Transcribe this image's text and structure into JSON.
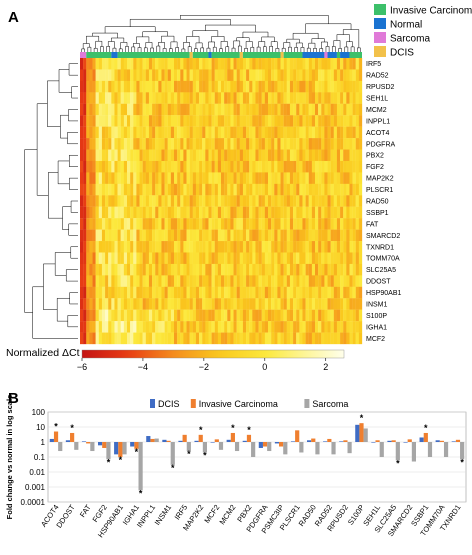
{
  "panel_a": {
    "label": "A",
    "legend": [
      {
        "name": "Invasive Carcinoma",
        "color": "#3cc06a"
      },
      {
        "name": "Normal",
        "color": "#1a73d1"
      },
      {
        "name": "Sarcoma",
        "color": "#e07ad8"
      },
      {
        "name": "DCIS",
        "color": "#f2c14a"
      }
    ],
    "genes": [
      "IRF5",
      "RAD52",
      "RPUSD2",
      "SEH1L",
      "MCM2",
      "INPPL1",
      "ACOT4",
      "PDGFRA",
      "PBX2",
      "FGF2",
      "MAP2K2",
      "PLSCR1",
      "RAD50",
      "SSBP1",
      "FAT",
      "SMARCD2",
      "TXNRD1",
      "TOMM70A",
      "SLC25A5",
      "DDOST",
      "HSP90AB1",
      "INSM1",
      "S100P",
      "IGHA1",
      "MCF2"
    ],
    "colorbar_label": "Normalized ΔCt",
    "colorbar_ticks": [
      "−6",
      "−4",
      "−2",
      "0",
      "2"
    ]
  },
  "panel_b": {
    "label": "B",
    "title_series": [
      "DCIS",
      "Invasive Carcinoma",
      "Sarcoma"
    ]
  },
  "chart_data": [
    {
      "type": "heatmap",
      "colorbar": {
        "label": "Normalized ΔCt",
        "range": [
          -6,
          2.6
        ],
        "ticks": [
          -6,
          -4,
          -2,
          0,
          2
        ]
      },
      "rows": [
        "IRF5",
        "RAD52",
        "RPUSD2",
        "SEH1L",
        "MCM2",
        "INPPL1",
        "ACOT4",
        "PDGFRA",
        "PBX2",
        "FGF2",
        "MAP2K2",
        "PLSCR1",
        "RAD50",
        "SSBP1",
        "FAT",
        "SMARCD2",
        "TXNRD1",
        "TOMM70A",
        "SLC25A5",
        "DDOST",
        "HSP90AB1",
        "INSM1",
        "S100P",
        "IGHA1",
        "MCF2"
      ],
      "n_columns": 90,
      "column_groups": [
        {
          "group": "Sarcoma",
          "from": 0,
          "to": 1
        },
        {
          "group": "Invasive Carcinoma",
          "from": 2,
          "to": 9
        },
        {
          "group": "Normal",
          "from": 10,
          "to": 11
        },
        {
          "group": "Invasive Carcinoma",
          "from": 12,
          "to": 34
        },
        {
          "group": "DCIS",
          "from": 35,
          "to": 35
        },
        {
          "group": "Invasive Carcinoma",
          "from": 36,
          "to": 40
        },
        {
          "group": "Normal",
          "from": 41,
          "to": 41
        },
        {
          "group": "Invasive Carcinoma",
          "from": 42,
          "to": 50
        },
        {
          "group": "DCIS",
          "from": 51,
          "to": 51
        },
        {
          "group": "Invasive Carcinoma",
          "from": 52,
          "to": 63
        },
        {
          "group": "DCIS",
          "from": 64,
          "to": 64
        },
        {
          "group": "Invasive Carcinoma",
          "from": 65,
          "to": 70
        },
        {
          "group": "Normal",
          "from": 71,
          "to": 77
        },
        {
          "group": "Sarcoma",
          "from": 78,
          "to": 78
        },
        {
          "group": "Normal",
          "from": 79,
          "to": 81
        },
        {
          "group": "Invasive Carcinoma",
          "from": 82,
          "to": 82
        },
        {
          "group": "Normal",
          "from": 83,
          "to": 85
        },
        {
          "group": "Invasive Carcinoma",
          "from": 86,
          "to": 89
        }
      ]
    },
    {
      "type": "bar",
      "ylabel": "Fold change vs normal in log scale",
      "yscale": "log",
      "ylim": [
        0.0001,
        100
      ],
      "yticks": [
        "0.0001",
        "0.001",
        "0.01",
        "0.1",
        "1",
        "10",
        "100"
      ],
      "categories": [
        "ACOT4",
        "DDOST",
        "FAT",
        "FGF2",
        "HSP90AB1",
        "IGHA1",
        "INPPL1",
        "INSM1",
        "IRF5",
        "MAP2K2",
        "MCF2",
        "MCM2",
        "PBX2",
        "PDGFRA",
        "PSMC3IP",
        "PLSCR1",
        "RAD50",
        "RAD52",
        "RPUSD2",
        "S100P",
        "SEH1L",
        "SLC25A5",
        "SMARCD2",
        "SSBP1",
        "TOMM70A",
        "TXNRD1"
      ],
      "series": [
        {
          "name": "DCIS",
          "color": "#3f6cc4",
          "values": [
            1.6,
            1.3,
            1.1,
            0.6,
            0.15,
            0.5,
            2.5,
            1.4,
            1.2,
            1.2,
            1.0,
            1.4,
            1.2,
            0.4,
            0.8,
            1.1,
            1.3,
            1.1,
            1.1,
            14,
            1.0,
            1.2,
            1.0,
            2.0,
            1.3,
            1.1
          ]
        },
        {
          "name": "Invasive Carcinoma",
          "color": "#ef7f2f",
          "values": [
            5.0,
            4.0,
            0.8,
            0.4,
            0.1,
            0.35,
            1.6,
            1.2,
            3.0,
            3.0,
            1.5,
            4.0,
            3.0,
            0.5,
            0.5,
            6.0,
            1.7,
            1.6,
            1.3,
            18,
            1.3,
            1.3,
            1.5,
            4.0,
            1.2,
            1.4
          ]
        },
        {
          "name": "Sarcoma",
          "color": "#a6a6a6",
          "values": [
            0.25,
            0.3,
            0.25,
            0.07,
            0.15,
            0.0006,
            1.7,
            0.03,
            0.25,
            0.2,
            0.3,
            0.25,
            0.1,
            0.25,
            0.15,
            0.2,
            0.15,
            0.15,
            0.18,
            8.0,
            0.1,
            0.06,
            0.05,
            0.1,
            0.1,
            0.07
          ]
        }
      ],
      "significant_markers": [
        {
          "category": "ACOT4",
          "series": "Invasive Carcinoma"
        },
        {
          "category": "DDOST",
          "series": "Invasive Carcinoma"
        },
        {
          "category": "FGF2",
          "series": "Sarcoma"
        },
        {
          "category": "HSP90AB1",
          "series": "Invasive Carcinoma"
        },
        {
          "category": "IGHA1",
          "series": "Invasive Carcinoma"
        },
        {
          "category": "IGHA1",
          "series": "Sarcoma"
        },
        {
          "category": "INSM1",
          "series": "Sarcoma"
        },
        {
          "category": "IRF5",
          "series": "Sarcoma"
        },
        {
          "category": "MAP2K2",
          "series": "Invasive Carcinoma"
        },
        {
          "category": "MAP2K2",
          "series": "Sarcoma"
        },
        {
          "category": "MCM2",
          "series": "Invasive Carcinoma"
        },
        {
          "category": "PBX2",
          "series": "Invasive Carcinoma"
        },
        {
          "category": "S100P",
          "series": "Invasive Carcinoma"
        },
        {
          "category": "SLC25A5",
          "series": "Sarcoma"
        },
        {
          "category": "SSBP1",
          "series": "Invasive Carcinoma"
        },
        {
          "category": "TXNRD1",
          "series": "Sarcoma"
        }
      ]
    }
  ]
}
